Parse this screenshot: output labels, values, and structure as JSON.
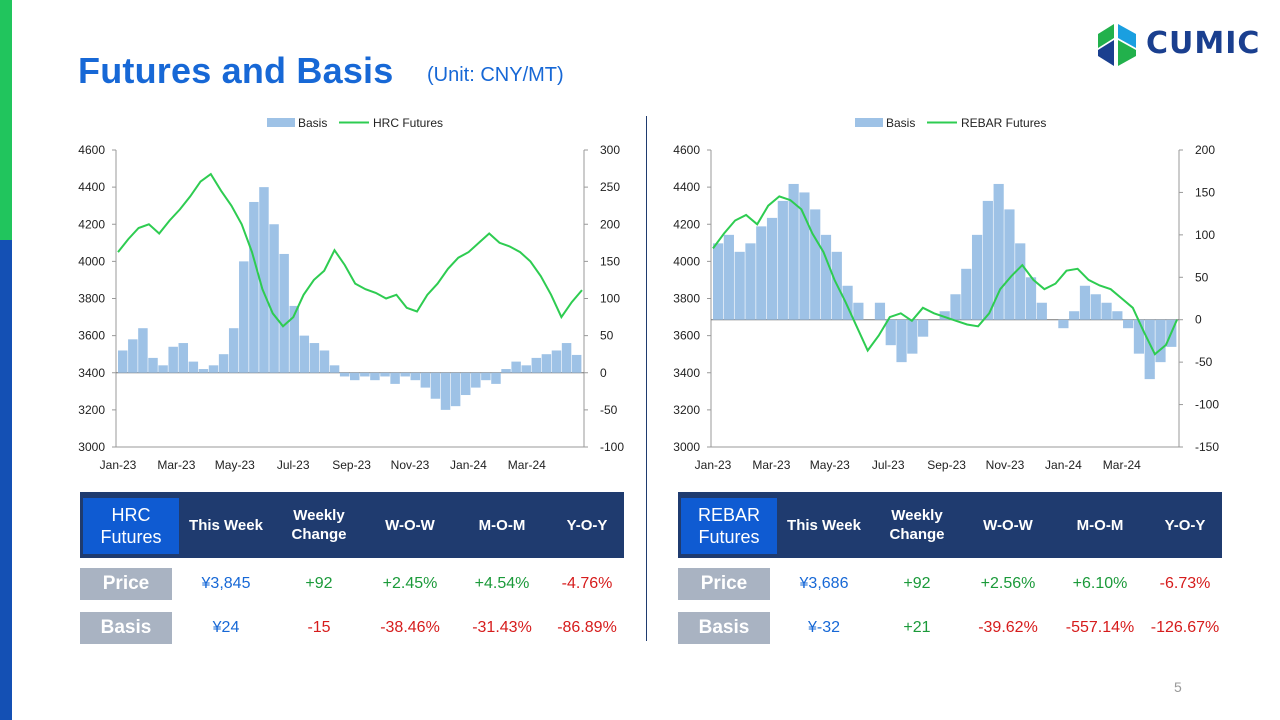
{
  "page": {
    "title": "Futures and Basis",
    "unit": "(Unit: CNY/MT)",
    "logo_text": "CUMIC",
    "page_number": "5",
    "colors": {
      "accent_green": "#21c55d",
      "accent_blue": "#1450b4",
      "title_blue": "#1768d6",
      "table_header": "#1f3b6f",
      "up": "#1b9a3a",
      "down": "#d61c1c",
      "neutral_value": "#1768d6"
    }
  },
  "chart_data": [
    {
      "type": "area",
      "legend": [
        "Basis",
        "HRC Futures"
      ],
      "x_ticks": [
        "Jan-23",
        "Mar-23",
        "May-23",
        "Jul-23",
        "Sep-23",
        "Nov-23",
        "Jan-24",
        "Mar-24"
      ],
      "y_left": {
        "ylim": [
          3000,
          4600
        ],
        "ticks": [
          "4600",
          "4400",
          "4200",
          "4000",
          "3800",
          "3600",
          "3400",
          "3200",
          "3000"
        ]
      },
      "y_right": {
        "ylim": [
          -100,
          300
        ],
        "ticks": [
          "300",
          "250",
          "200",
          "150",
          "100",
          "50",
          "0",
          "-50",
          "-100"
        ]
      },
      "series": [
        {
          "name": "HRC Futures",
          "axis": "left",
          "kind": "line",
          "color": "#2ecc51",
          "values": [
            4050,
            4120,
            4180,
            4200,
            4150,
            4220,
            4280,
            4350,
            4430,
            4470,
            4380,
            4300,
            4200,
            4050,
            3850,
            3720,
            3650,
            3700,
            3820,
            3900,
            3950,
            4060,
            3980,
            3880,
            3850,
            3830,
            3800,
            3820,
            3750,
            3730,
            3820,
            3880,
            3960,
            4020,
            4050,
            4100,
            4150,
            4100,
            4080,
            4050,
            4000,
            3920,
            3820,
            3700,
            3780,
            3845
          ]
        },
        {
          "name": "Basis",
          "axis": "right",
          "kind": "bar",
          "color": "#9ec2e6",
          "values": [
            30,
            45,
            60,
            20,
            10,
            35,
            40,
            15,
            5,
            10,
            25,
            60,
            150,
            230,
            250,
            200,
            160,
            90,
            50,
            40,
            30,
            10,
            -5,
            -10,
            -5,
            -10,
            -5,
            -15,
            -5,
            -10,
            -20,
            -35,
            -50,
            -45,
            -30,
            -20,
            -10,
            -15,
            5,
            15,
            10,
            20,
            25,
            30,
            40,
            24
          ]
        }
      ]
    },
    {
      "type": "area",
      "legend": [
        "Basis",
        "REBAR Futures"
      ],
      "x_ticks": [
        "Jan-23",
        "Mar-23",
        "May-23",
        "Jul-23",
        "Sep-23",
        "Nov-23",
        "Jan-24",
        "Mar-24"
      ],
      "y_left": {
        "ylim": [
          3000,
          4600
        ],
        "ticks": [
          "4600",
          "4400",
          "4200",
          "4000",
          "3800",
          "3600",
          "3400",
          "3200",
          "3000"
        ]
      },
      "y_right": {
        "ylim": [
          -150,
          200
        ],
        "ticks": [
          "200",
          "150",
          "100",
          "50",
          "0",
          "-50",
          "-100",
          "-150"
        ]
      },
      "series": [
        {
          "name": "REBAR Futures",
          "axis": "left",
          "kind": "line",
          "color": "#2ecc51",
          "values": [
            4070,
            4150,
            4220,
            4250,
            4200,
            4300,
            4350,
            4330,
            4280,
            4150,
            4050,
            3900,
            3780,
            3650,
            3520,
            3600,
            3700,
            3720,
            3680,
            3750,
            3720,
            3700,
            3680,
            3660,
            3650,
            3720,
            3850,
            3920,
            3980,
            3900,
            3850,
            3880,
            3950,
            3960,
            3900,
            3870,
            3850,
            3800,
            3750,
            3620,
            3500,
            3550,
            3686
          ]
        },
        {
          "name": "Basis",
          "axis": "right",
          "kind": "bar",
          "color": "#9ec2e6",
          "values": [
            90,
            100,
            80,
            90,
            110,
            120,
            140,
            160,
            150,
            130,
            100,
            80,
            40,
            20,
            0,
            20,
            -30,
            -50,
            -40,
            -20,
            0,
            10,
            30,
            60,
            100,
            140,
            160,
            130,
            90,
            50,
            20,
            0,
            -10,
            10,
            40,
            30,
            20,
            10,
            -10,
            -40,
            -70,
            -50,
            -32
          ]
        }
      ]
    }
  ],
  "tables": [
    {
      "header_first": "HRC Futures",
      "header_first_lines": [
        "HRC",
        "Futures"
      ],
      "headers": [
        "This Week",
        "Weekly Change",
        "W-O-W",
        "M-O-M",
        "Y-O-Y"
      ],
      "header_lines": [
        [
          "This Week"
        ],
        [
          "Weekly",
          "Change"
        ],
        [
          "W-O-W"
        ],
        [
          "M-O-M"
        ],
        [
          "Y-O-Y"
        ]
      ],
      "rows": [
        {
          "label": "Price",
          "values": [
            "¥3,845",
            "+92",
            "+2.45%",
            "+4.54%",
            "-4.76%"
          ],
          "tones": [
            "neutral",
            "up",
            "up",
            "up",
            "down"
          ]
        },
        {
          "label": "Basis",
          "values": [
            "¥24",
            "-15",
            "-38.46%",
            "-31.43%",
            "-86.89%"
          ],
          "tones": [
            "neutral",
            "down",
            "down",
            "down",
            "down"
          ]
        }
      ]
    },
    {
      "header_first": "REBAR Futures",
      "header_first_lines": [
        "REBAR",
        "Futures"
      ],
      "headers": [
        "This Week",
        "Weekly Change",
        "W-O-W",
        "M-O-M",
        "Y-O-Y"
      ],
      "header_lines": [
        [
          "This Week"
        ],
        [
          "Weekly",
          "Change"
        ],
        [
          "W-O-W"
        ],
        [
          "M-O-M"
        ],
        [
          "Y-O-Y"
        ]
      ],
      "rows": [
        {
          "label": "Price",
          "values": [
            "¥3,686",
            "+92",
            "+2.56%",
            "+6.10%",
            "-6.73%"
          ],
          "tones": [
            "neutral",
            "up",
            "up",
            "up",
            "down"
          ]
        },
        {
          "label": "Basis",
          "values": [
            "¥-32",
            "+21",
            "-39.62%",
            "-557.14%",
            "-126.67%"
          ],
          "tones": [
            "neutral",
            "up",
            "down",
            "down",
            "down"
          ]
        }
      ]
    }
  ]
}
